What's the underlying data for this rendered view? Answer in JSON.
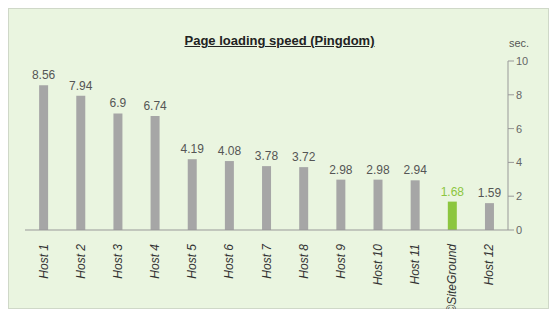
{
  "chart_data": {
    "type": "bar",
    "title": "Page loading speed (Pingdom)",
    "ylabel": "sec.",
    "categories": [
      "Host 1",
      "Host 2",
      "Host 3",
      "Host 4",
      "Host 5",
      "Host 6",
      "Host 7",
      "Host 8",
      "Host 9",
      "Host 10",
      "Host 11",
      "©SiteGround",
      "Host 12"
    ],
    "values": [
      8.56,
      7.94,
      6.9,
      6.74,
      4.19,
      4.08,
      3.78,
      3.72,
      2.98,
      2.98,
      2.94,
      1.68,
      1.59
    ],
    "colors": [
      "#a6a6a6",
      "#a6a6a6",
      "#a6a6a6",
      "#a6a6a6",
      "#a6a6a6",
      "#a6a6a6",
      "#a6a6a6",
      "#a6a6a6",
      "#a6a6a6",
      "#a6a6a6",
      "#a6a6a6",
      "#8cc63f",
      "#a6a6a6"
    ],
    "ylim": [
      0,
      10
    ],
    "yticks": [
      0,
      2,
      4,
      6,
      8,
      10
    ],
    "grid": false,
    "data_labels": true
  }
}
